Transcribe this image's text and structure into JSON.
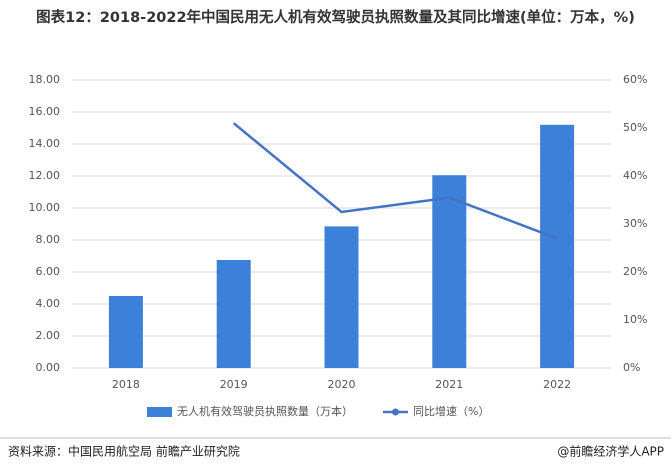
{
  "chart_data": {
    "type": "bar_line",
    "title": "图表12：2018-2022年中国民用无人机有效驾驶员执照数量及其同比增速(单位：万本，%)",
    "categories": [
      "2018",
      "2019",
      "2020",
      "2021",
      "2022"
    ],
    "series": [
      {
        "name": "无人机有效驾驶员执照数量（万本）",
        "type": "bar",
        "color": "#3d80da",
        "values": [
          4.5,
          6.75,
          8.85,
          12.05,
          15.2
        ]
      },
      {
        "name": "同比增速（%）",
        "type": "line",
        "axis": "y2",
        "color": "#4472c4",
        "values": [
          null,
          51,
          32.5,
          35.5,
          27
        ]
      }
    ],
    "ylim": [
      0,
      18
    ],
    "yticks": [
      {
        "value": 0,
        "label": "0.00"
      },
      {
        "value": 2,
        "label": "2.00"
      },
      {
        "value": 4,
        "label": "4.00"
      },
      {
        "value": 6,
        "label": "6.00"
      },
      {
        "value": 8,
        "label": "8.00"
      },
      {
        "value": 10,
        "label": "10.00"
      },
      {
        "value": 12,
        "label": "12.00"
      },
      {
        "value": 14,
        "label": "14.00"
      },
      {
        "value": 16,
        "label": "16.00"
      },
      {
        "value": 18,
        "label": "18.00"
      }
    ],
    "y2lim": [
      0,
      60
    ],
    "y2ticks": [
      {
        "value": 0,
        "label": "0%"
      },
      {
        "value": 10,
        "label": "10%"
      },
      {
        "value": 20,
        "label": "20%"
      },
      {
        "value": 30,
        "label": "30%"
      },
      {
        "value": 40,
        "label": "40%"
      },
      {
        "value": 50,
        "label": "50%"
      },
      {
        "value": 60,
        "label": "60%"
      }
    ],
    "grid": true,
    "legend": "bottom",
    "source": "资料来源：中国民用航空局 前瞻产业研究院",
    "credit": "@前瞻经济学人APP"
  }
}
